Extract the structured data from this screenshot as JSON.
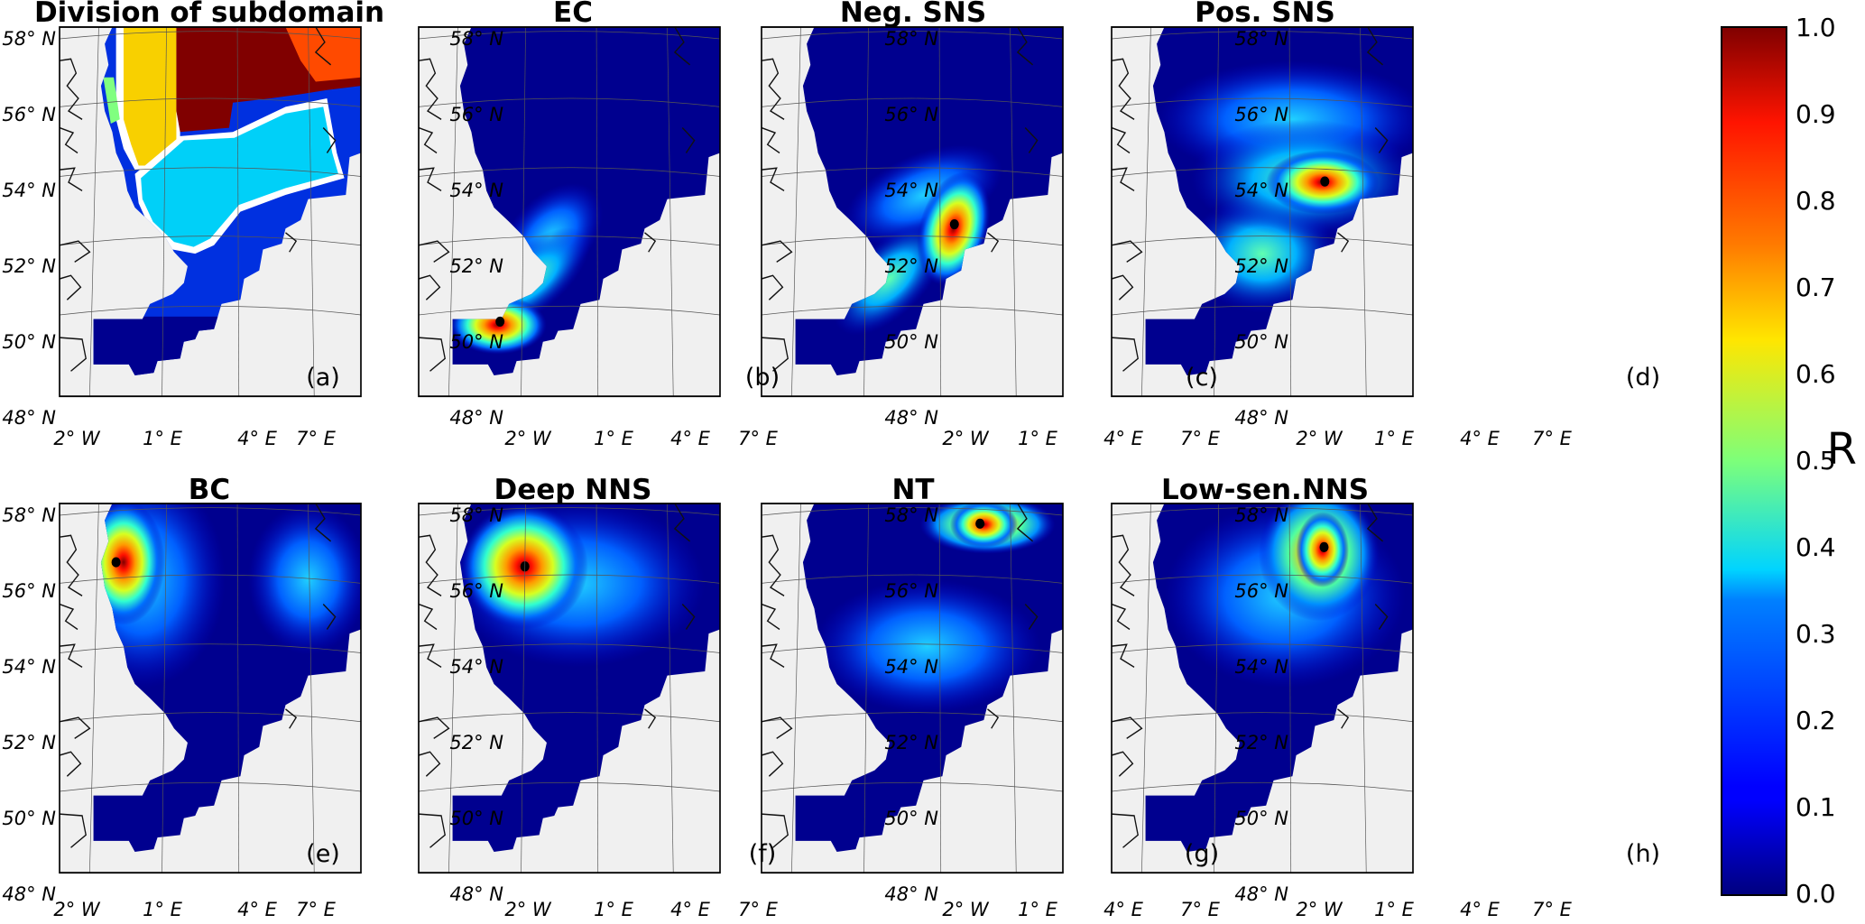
{
  "panels": [
    {
      "id": "a",
      "title": "Division of subdomain",
      "label": "(a)"
    },
    {
      "id": "b",
      "title": "EC",
      "label": "(b)"
    },
    {
      "id": "c",
      "title": "Neg. SNS",
      "label": "(c)"
    },
    {
      "id": "d",
      "title": "Pos. SNS",
      "label": "(d)"
    },
    {
      "id": "e",
      "title": "BC",
      "label": "(e)"
    },
    {
      "id": "f",
      "title": "Deep NNS",
      "label": "(f)"
    },
    {
      "id": "g",
      "title": "NT",
      "label": "(g)"
    },
    {
      "id": "h",
      "title": "Low-sen.NNS",
      "label": "(h)"
    }
  ],
  "lat_ticks": [
    "58° N",
    "56° N",
    "54° N",
    "52° N",
    "50° N",
    "48° N"
  ],
  "lon_ticks": [
    "2° W",
    "1° E",
    "4° E",
    "7° E"
  ],
  "colorbar": {
    "label": "R",
    "ticks": [
      "1.0",
      "0.9",
      "0.8",
      "0.7",
      "0.6",
      "0.5",
      "0.4",
      "0.3",
      "0.2",
      "0.1",
      "0.0"
    ],
    "range": [
      0.0,
      1.0
    ],
    "colormap": "jet"
  },
  "colors": {
    "land": "#f0f0f0",
    "ocean_low": "#00008f",
    "subdomain_yellow": "#f8d000",
    "subdomain_darkred": "#800000",
    "subdomain_orange": "#ff4a00",
    "subdomain_cyan": "#00d0f8",
    "subdomain_blue": "#0030e0",
    "subdomain_green": "#80ff80"
  }
}
